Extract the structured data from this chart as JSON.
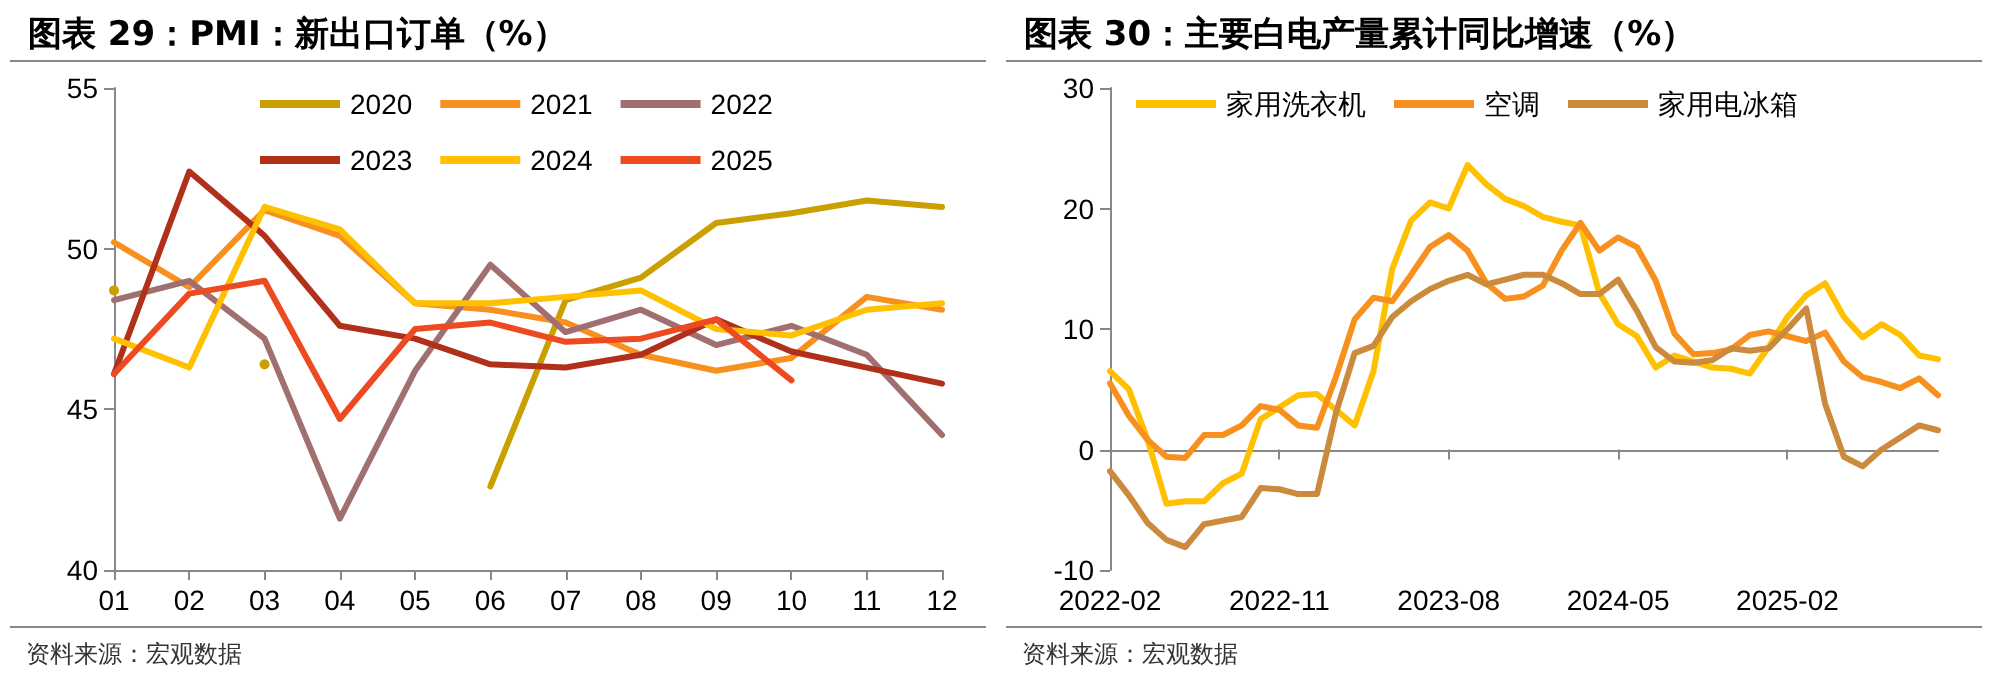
{
  "chart_data": [
    {
      "type": "line",
      "title": "图表 29：PMI：新出口订单（%）",
      "categories": [
        "01",
        "02",
        "03",
        "04",
        "05",
        "06",
        "07",
        "08",
        "09",
        "10",
        "11",
        "12"
      ],
      "ylim": [
        40,
        55
      ],
      "yticks": [
        40,
        45,
        50,
        55
      ],
      "legend": "top",
      "marker": "none",
      "annotations": [
        "资料来源：宏观数据"
      ],
      "series": [
        {
          "name": "2020",
          "color": "#c9a000",
          "values": [
            48.7,
            null,
            46.4,
            null,
            null,
            42.6,
            48.4,
            49.1,
            50.8,
            51.1,
            51.5,
            51.3
          ]
        },
        {
          "name": "2021",
          "color": "#f7901e",
          "values": [
            50.2,
            48.8,
            51.2,
            50.4,
            48.3,
            48.1,
            47.7,
            46.7,
            46.2,
            46.6,
            48.5,
            48.1
          ]
        },
        {
          "name": "2022",
          "color": "#a07070",
          "values": [
            48.4,
            49.0,
            47.2,
            41.6,
            46.2,
            49.5,
            47.4,
            48.1,
            47.0,
            47.6,
            46.7,
            44.2
          ]
        },
        {
          "name": "2023",
          "color": "#b0301a",
          "values": [
            46.1,
            52.4,
            50.4,
            47.6,
            47.2,
            46.4,
            46.3,
            46.7,
            47.8,
            46.8,
            46.3,
            45.8
          ]
        },
        {
          "name": "2024",
          "color": "#ffc000",
          "values": [
            47.2,
            46.3,
            51.3,
            50.6,
            48.3,
            48.3,
            48.5,
            48.7,
            47.5,
            47.3,
            48.1,
            48.3
          ]
        },
        {
          "name": "2025",
          "color": "#ee4a22",
          "values": [
            46.1,
            48.6,
            49.0,
            44.7,
            47.5,
            47.7,
            47.1,
            47.2,
            47.8,
            45.9,
            null,
            null
          ]
        }
      ]
    },
    {
      "type": "line",
      "title": "图表 30：主要白电产量累计同比增速（%）",
      "categories": [
        "2022-02",
        null,
        null,
        null,
        null,
        null,
        null,
        null,
        null,
        "2022-11",
        null,
        null,
        null,
        null,
        null,
        null,
        null,
        null,
        "2023-08",
        null,
        null,
        null,
        null,
        null,
        null,
        null,
        null,
        "2024-05",
        null,
        null,
        null,
        null,
        null,
        null,
        null,
        null,
        "2025-02",
        null,
        null,
        null,
        null,
        null,
        null,
        null,
        null
      ],
      "ylim": [
        -10,
        30
      ],
      "yticks": [
        -10,
        0,
        10,
        20,
        30
      ],
      "legend": "top",
      "marker": "none",
      "annotations": [
        "资料来源：宏观数据"
      ],
      "series": [
        {
          "name": "家用洗衣机",
          "color": "#ffc000",
          "values": [
            6.5,
            5.0,
            0.8,
            -4.5,
            -4.3,
            -4.3,
            -2.8,
            -2.0,
            2.5,
            3.5,
            4.5,
            4.6,
            3.3,
            2.0,
            6.5,
            15.0,
            19.0,
            20.5,
            20.0,
            23.6,
            22.0,
            20.8,
            20.2,
            19.3,
            18.9,
            18.6,
            13.0,
            10.4,
            9.4,
            6.8,
            7.8,
            7.3,
            6.8,
            6.7,
            6.3,
            8.5,
            11.0,
            12.8,
            13.8,
            11.0,
            9.3,
            10.4,
            9.5,
            7.8,
            7.5
          ]
        },
        {
          "name": "空调",
          "color": "#f7901e",
          "values": [
            5.5,
            2.8,
            0.8,
            -0.6,
            -0.7,
            1.2,
            1.2,
            2.0,
            3.6,
            3.3,
            2.0,
            1.8,
            6.0,
            10.8,
            12.6,
            12.3,
            14.5,
            16.8,
            17.8,
            16.5,
            13.8,
            12.5,
            12.7,
            13.6,
            16.5,
            18.8,
            16.5,
            17.6,
            16.8,
            14.0,
            9.6,
            7.9,
            8.0,
            8.3,
            9.5,
            9.8,
            9.4,
            9.0,
            9.7,
            7.3,
            6.0,
            5.6,
            5.1,
            5.9,
            4.5
          ]
        },
        {
          "name": "家用电冰箱",
          "color": "#cc8a3c",
          "values": [
            -1.8,
            -3.8,
            -6.1,
            -7.5,
            -8.1,
            -6.2,
            -5.9,
            -5.6,
            -3.2,
            -3.3,
            -3.7,
            -3.7,
            3.0,
            8.0,
            8.6,
            11.0,
            12.3,
            13.3,
            14.0,
            14.5,
            13.7,
            14.1,
            14.5,
            14.5,
            13.8,
            12.9,
            12.9,
            14.1,
            11.5,
            8.5,
            7.3,
            7.2,
            7.4,
            8.4,
            8.2,
            8.4,
            10.0,
            11.7,
            3.8,
            -0.6,
            -1.4,
            0.0,
            1.0,
            2.0,
            1.6
          ]
        }
      ]
    }
  ]
}
